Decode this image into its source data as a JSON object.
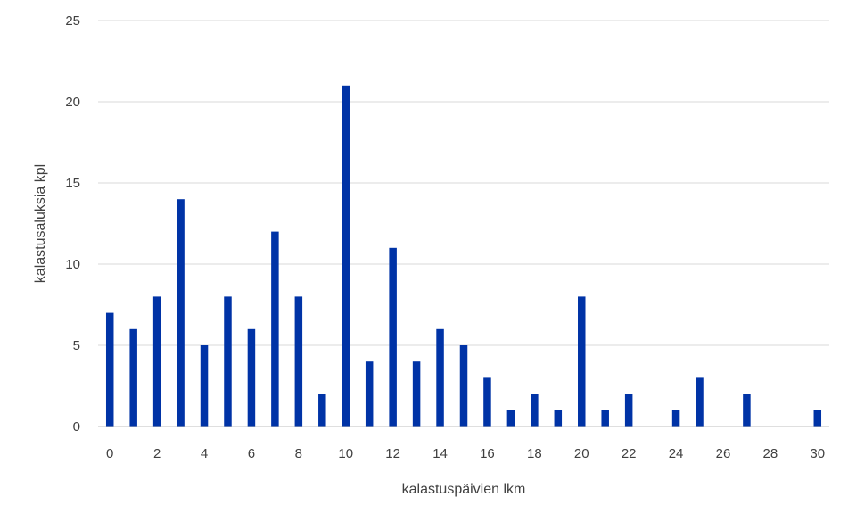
{
  "chart_data": {
    "type": "bar",
    "title": "",
    "xlabel": "kalastuspäivien lkm",
    "ylabel": "kalastusaluksia kpl",
    "x": [
      0,
      1,
      2,
      3,
      4,
      5,
      6,
      7,
      8,
      9,
      10,
      11,
      12,
      13,
      14,
      15,
      16,
      17,
      18,
      19,
      20,
      21,
      22,
      23,
      24,
      25,
      26,
      27,
      28,
      29,
      30
    ],
    "values": [
      7,
      6,
      8,
      14,
      5,
      8,
      6,
      12,
      8,
      2,
      21,
      4,
      11,
      4,
      6,
      5,
      3,
      1,
      2,
      1,
      8,
      1,
      2,
      0,
      1,
      3,
      0,
      2,
      0,
      0,
      1
    ],
    "x_tick_labels": [
      "0",
      "2",
      "4",
      "6",
      "8",
      "10",
      "12",
      "14",
      "16",
      "18",
      "20",
      "22",
      "24",
      "26",
      "28",
      "30"
    ],
    "y_tick_labels": [
      "0",
      "5",
      "10",
      "15",
      "20",
      "25"
    ],
    "ylim": [
      0,
      25
    ],
    "y_ticks": [
      0,
      5,
      10,
      15,
      20,
      25
    ],
    "grid": true,
    "legend": "none",
    "bar_color": "#0033a6",
    "grid_color": "#d9d9d9"
  }
}
